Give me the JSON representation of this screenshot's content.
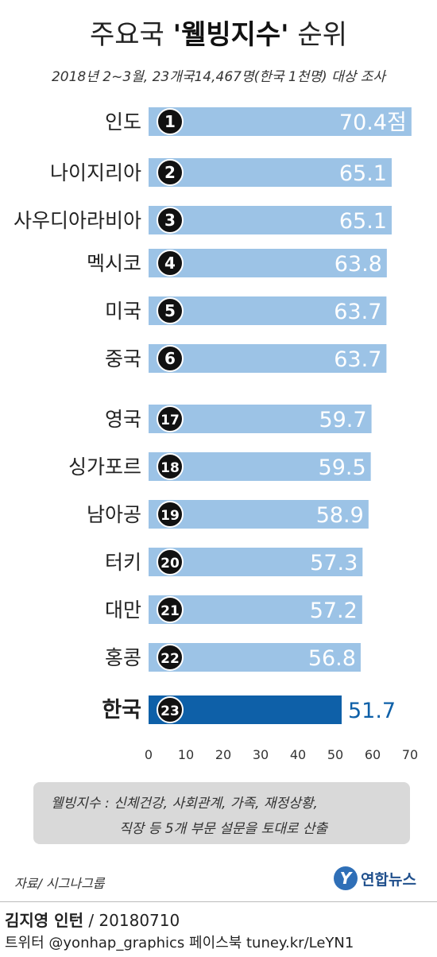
{
  "header": {
    "title_prefix": "주요국 ",
    "title_bold": "'웰빙지수'",
    "title_suffix": " 순위",
    "subtitle": "2018년 2~3월, 23개국14,467명(한국 1천명) 대상 조사"
  },
  "colors": {
    "bar": "#9cc3e6",
    "highlight_bar": "#0e60a8",
    "badge": "#111111",
    "value_text": "#ffffff",
    "highlight_value": "#0e60a8"
  },
  "chart_data": {
    "type": "bar",
    "orientation": "horizontal",
    "categories": [
      "인도",
      "나이지리아",
      "사우디아라비아",
      "멕시코",
      "미국",
      "중국",
      "영국",
      "싱가포르",
      "남아공",
      "터키",
      "대만",
      "홍콩",
      "한국"
    ],
    "ranks": [
      1,
      2,
      3,
      4,
      5,
      6,
      17,
      18,
      19,
      20,
      21,
      22,
      23
    ],
    "values": [
      70.4,
      65.1,
      65.1,
      63.8,
      63.7,
      63.7,
      59.7,
      59.5,
      58.9,
      57.3,
      57.2,
      56.8,
      51.7
    ],
    "value_labels": [
      "70.4점",
      "65.1",
      "65.1",
      "63.8",
      "63.7",
      "63.7",
      "59.7",
      "59.5",
      "58.9",
      "57.3",
      "57.2",
      "56.8",
      "51.7"
    ],
    "highlight": "한국",
    "xlim": [
      0,
      70
    ],
    "xticks": [
      0,
      10,
      20,
      30,
      40,
      50,
      60,
      70
    ],
    "grid": false
  },
  "note": {
    "line1": "웰빙지수 : 신체건강, 사회관계, 가족, 재정상황,",
    "line2": "직장 등 5개 부문 설문을 토대로 산출"
  },
  "footer": {
    "source": "자료/ 시그나그룹",
    "logo_mark": "Y",
    "logo_name": "연합뉴스",
    "credit_name": "김지영 인턴",
    "credit_date": " / 20180710",
    "social": "트위터 @yonhap_graphics  페이스북 tuney.kr/LeYN1"
  }
}
